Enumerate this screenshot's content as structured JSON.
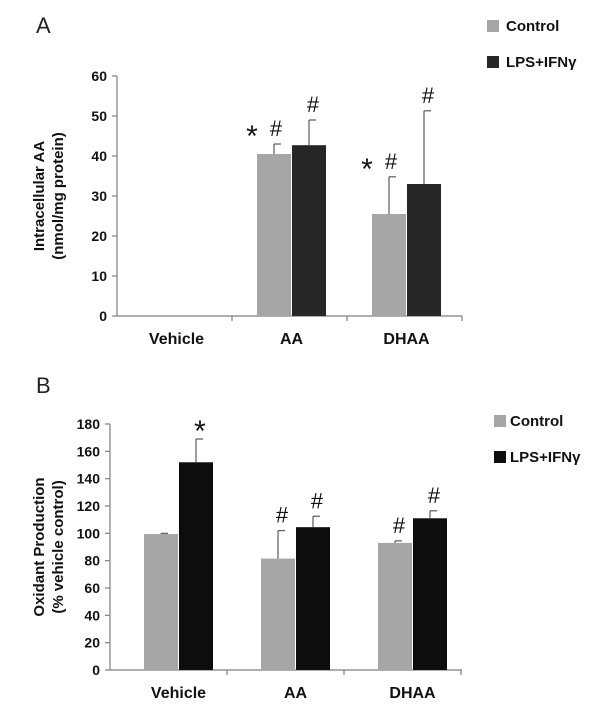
{
  "chart_data": [
    {
      "panel": "A",
      "type": "bar",
      "categories": [
        "Vehicle",
        "AA",
        "DHAA"
      ],
      "series": [
        {
          "name": "Control",
          "color": "#a6a6a6",
          "values": [
            0,
            40.5,
            25.5
          ],
          "errors": [
            0,
            2.5,
            9.3
          ]
        },
        {
          "name": "LPS+IFNγ",
          "color": "#262626",
          "values": [
            0,
            42.7,
            33
          ],
          "errors": [
            0,
            6.3,
            18.3
          ]
        }
      ],
      "annotations": [
        {
          "category": "AA",
          "series": "Control",
          "marks": [
            "*",
            "#"
          ]
        },
        {
          "category": "AA",
          "series": "LPS+IFNγ",
          "marks": [
            "#"
          ]
        },
        {
          "category": "DHAA",
          "series": "Control",
          "marks": [
            "*",
            "#"
          ]
        },
        {
          "category": "DHAA",
          "series": "LPS+IFNγ",
          "marks": [
            "#"
          ]
        }
      ],
      "ylabel_line1": "Intracellular AA",
      "ylabel_line2": "(nmol/mg protein)",
      "ylim": [
        0,
        60
      ],
      "yticks": [
        0,
        10,
        20,
        30,
        40,
        50,
        60
      ],
      "legend_position": "top-right",
      "grid": false
    },
    {
      "panel": "B",
      "type": "bar",
      "categories": [
        "Vehicle",
        "AA",
        "DHAA"
      ],
      "series": [
        {
          "name": "Control",
          "color": "#a6a6a6",
          "values": [
            99.5,
            81.5,
            93
          ],
          "errors": [
            0.5,
            20.5,
            1.5
          ]
        },
        {
          "name": "LPS+IFNγ",
          "color": "#0d0d0d",
          "values": [
            152,
            104.5,
            111
          ],
          "errors": [
            17,
            8,
            5.5
          ]
        }
      ],
      "annotations": [
        {
          "category": "Vehicle",
          "series": "LPS+IFNγ",
          "marks": [
            "*"
          ]
        },
        {
          "category": "AA",
          "series": "Control",
          "marks": [
            "#"
          ]
        },
        {
          "category": "AA",
          "series": "LPS+IFNγ",
          "marks": [
            "#"
          ]
        },
        {
          "category": "DHAA",
          "series": "Control",
          "marks": [
            "#"
          ]
        },
        {
          "category": "DHAA",
          "series": "LPS+IFNγ",
          "marks": [
            "#"
          ]
        }
      ],
      "ylabel_line1": "Oxidant Production",
      "ylabel_line2": "(% vehicle control)",
      "ylim": [
        0,
        180
      ],
      "yticks": [
        0,
        20,
        40,
        60,
        80,
        100,
        120,
        140,
        160,
        180
      ],
      "legend_position": "right",
      "grid": false
    }
  ]
}
